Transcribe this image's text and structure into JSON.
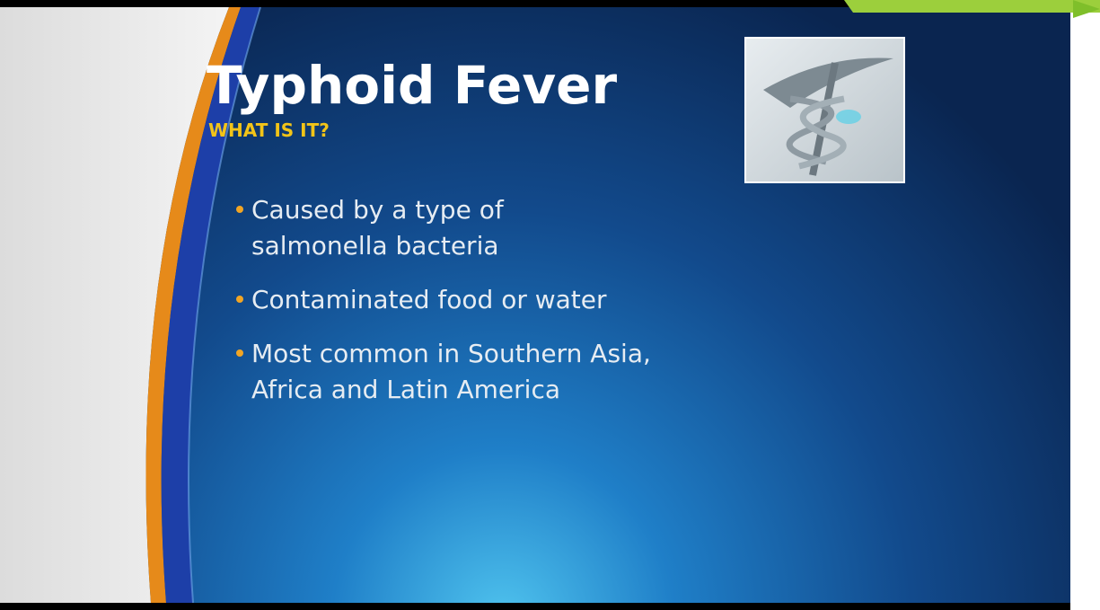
{
  "slide": {
    "title": "Typhoid Fever",
    "subtitle": "WHAT IS IT?",
    "bullets": [
      [
        "Caused by a type of",
        "salmonella bacteria"
      ],
      [
        "Contaminated food or water"
      ],
      [
        "Most common in Southern Asia,",
        "Africa and Latin America"
      ]
    ]
  }
}
